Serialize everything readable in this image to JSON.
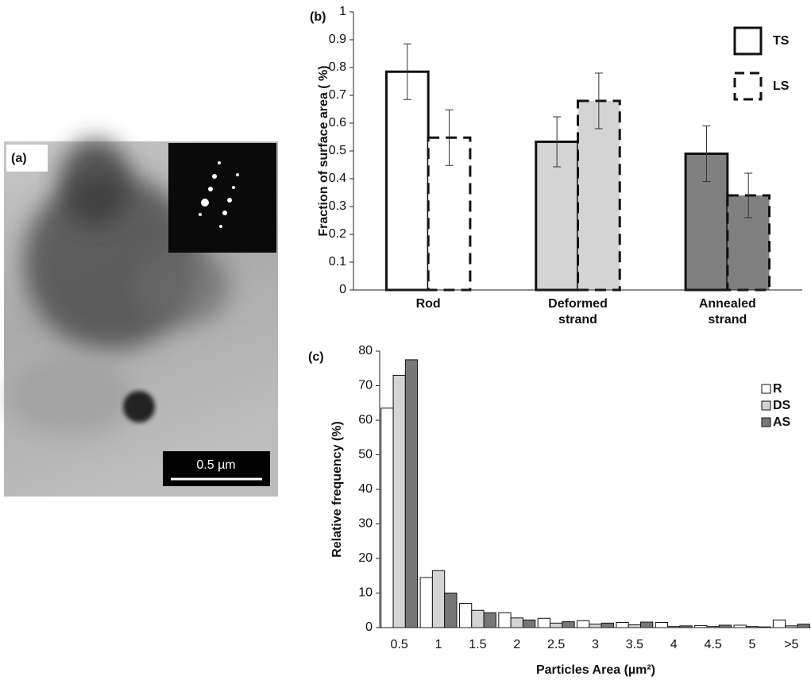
{
  "panel_a": {
    "label": "(a)",
    "scale_bar": "0.5 µm"
  },
  "chart_data": [
    {
      "type": "bar",
      "title": "(b)",
      "y_label": "Fraction of surface area ( %)",
      "categories": [
        "Rod",
        "Deformed strand",
        "Annealed strand"
      ],
      "category_colors": [
        "#ffffff",
        "#d4d4d4",
        "#808080"
      ],
      "series": [
        {
          "name": "TS",
          "line_style": "solid",
          "values": [
            0.785,
            0.533,
            0.49
          ],
          "errors": [
            0.1,
            0.09,
            0.1
          ]
        },
        {
          "name": "LS",
          "line_style": "dashed",
          "values": [
            0.548,
            0.68,
            0.34
          ],
          "errors": [
            0.1,
            0.1,
            0.08
          ]
        }
      ],
      "ylim": [
        0,
        1
      ],
      "yticks": [
        0,
        0.1,
        0.2,
        0.3,
        0.4,
        0.5,
        0.6,
        0.7,
        0.8,
        0.9,
        1
      ],
      "legend": "upper right"
    },
    {
      "type": "bar",
      "title": "(c)",
      "y_label": "Relative frequency (%)",
      "x_label": "Particles Area (µm²)",
      "categories": [
        "0.5",
        "1",
        "1.5",
        "2",
        "2.5",
        "3",
        "3.5",
        "4",
        "4.5",
        "5",
        ">5"
      ],
      "series": [
        {
          "name": "R",
          "color": "#ffffff",
          "values": [
            63.5,
            14.5,
            7,
            4.3,
            2.7,
            2,
            1.5,
            1.5,
            0.6,
            0.7,
            2.2
          ]
        },
        {
          "name": "DS",
          "color": "#d4d4d4",
          "values": [
            73,
            16.5,
            5,
            2.8,
            1.3,
            1,
            0.8,
            0.3,
            0.3,
            0.3,
            0.5
          ]
        },
        {
          "name": "AS",
          "color": "#777777",
          "values": [
            77.5,
            10,
            4.3,
            2.2,
            1.7,
            1.3,
            1.6,
            0.5,
            0.7,
            0.2,
            1
          ]
        }
      ],
      "ylim": [
        0,
        80
      ],
      "yticks": [
        0,
        10,
        20,
        30,
        40,
        50,
        60,
        70,
        80
      ],
      "legend": "upper right"
    }
  ]
}
